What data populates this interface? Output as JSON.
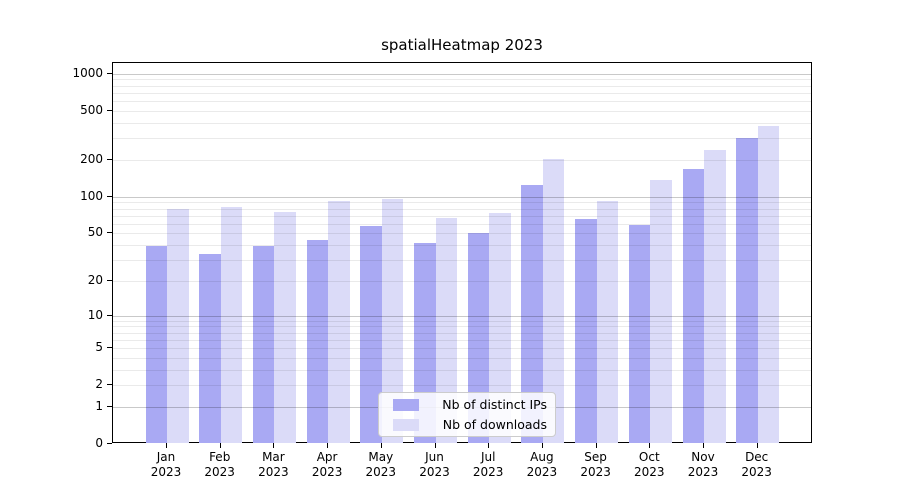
{
  "title": "spatialHeatmap 2023",
  "chart_data": {
    "type": "bar",
    "title": "spatialHeatmap 2023",
    "categories": [
      "Jan 2023",
      "Feb 2023",
      "Mar 2023",
      "Apr 2023",
      "May 2023",
      "Jun 2023",
      "Jul 2023",
      "Aug 2023",
      "Sep 2023",
      "Oct 2023",
      "Nov 2023",
      "Dec 2023"
    ],
    "months": [
      "Jan",
      "Feb",
      "Mar",
      "Apr",
      "May",
      "Jun",
      "Jul",
      "Aug",
      "Sep",
      "Oct",
      "Nov",
      "Dec"
    ],
    "year_label": "2023",
    "series": [
      {
        "name": "Nb of distinct IPs",
        "color": "#a9a9f3",
        "values": [
          39,
          34,
          39,
          44,
          58,
          42,
          50,
          124,
          66,
          59,
          168,
          303
        ]
      },
      {
        "name": "Nb of downloads",
        "color": "#dbdbf8",
        "values": [
          80,
          83,
          75,
          93,
          95,
          67,
          74,
          202,
          92,
          137,
          240,
          375
        ]
      }
    ],
    "xlabel": "",
    "ylabel": "",
    "yscale": "log1p",
    "yticks": [
      0,
      1,
      2,
      5,
      10,
      20,
      50,
      100,
      200,
      500,
      1000
    ],
    "ylim": [
      0,
      1220
    ],
    "grid": {
      "on": true,
      "minor_values": [
        2,
        3,
        4,
        5,
        6,
        7,
        8,
        9,
        20,
        30,
        40,
        50,
        60,
        70,
        80,
        90,
        200,
        300,
        400,
        500,
        600,
        700,
        800,
        900
      ],
      "major_values": [
        1,
        10,
        100,
        1000
      ],
      "minor_color": "#eaeaea",
      "major_color": "#c9c9c9"
    },
    "legend": {
      "position": "lower center",
      "entries": [
        "Nb of distinct IPs",
        "Nb of downloads"
      ]
    }
  }
}
